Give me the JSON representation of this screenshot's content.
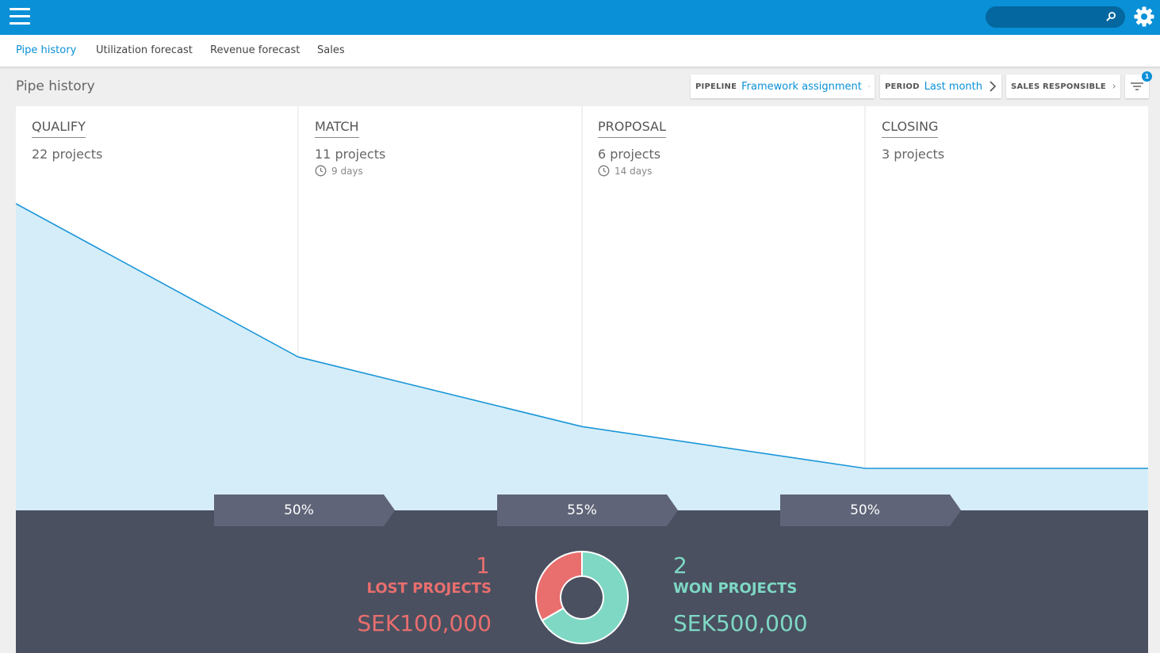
{
  "header": {
    "search_placeholder": "",
    "menu_icon": "hamburger-icon",
    "settings_icon": "gear-icon",
    "accent_color": "#0a90d7"
  },
  "tabs": [
    {
      "label": "Pipe history",
      "active": true
    },
    {
      "label": "Utilization forecast",
      "active": false
    },
    {
      "label": "Revenue forecast",
      "active": false
    },
    {
      "label": "Sales",
      "active": false
    }
  ],
  "page": {
    "title": "Pipe history"
  },
  "filters": {
    "pipeline": {
      "label": "PIPELINE",
      "value": "Framework assignment"
    },
    "period": {
      "label": "PERIOD",
      "value": "Last month"
    },
    "sales_responsible": {
      "label": "SALES RESPONSIBLE"
    },
    "filter_badge": "1"
  },
  "stages": [
    {
      "name": "QUALIFY",
      "count_text": "22 projects",
      "count": 22,
      "days": ""
    },
    {
      "name": "MATCH",
      "count_text": "11 projects",
      "count": 11,
      "days": "9 days"
    },
    {
      "name": "PROPOSAL",
      "count_text": "6 projects",
      "count": 6,
      "days": "14 days"
    },
    {
      "name": "CLOSING",
      "count_text": "3 projects",
      "count": 3,
      "days": ""
    }
  ],
  "conversions": [
    "50%",
    "55%",
    "50%"
  ],
  "summary": {
    "lost": {
      "count": "1",
      "label": "LOST PROJECTS",
      "value": "SEK100,000",
      "color": "#e96e6e"
    },
    "won": {
      "count": "2",
      "label": "WON PROJECTS",
      "value": "SEK500,000",
      "color": "#7ed8c4"
    }
  }
}
